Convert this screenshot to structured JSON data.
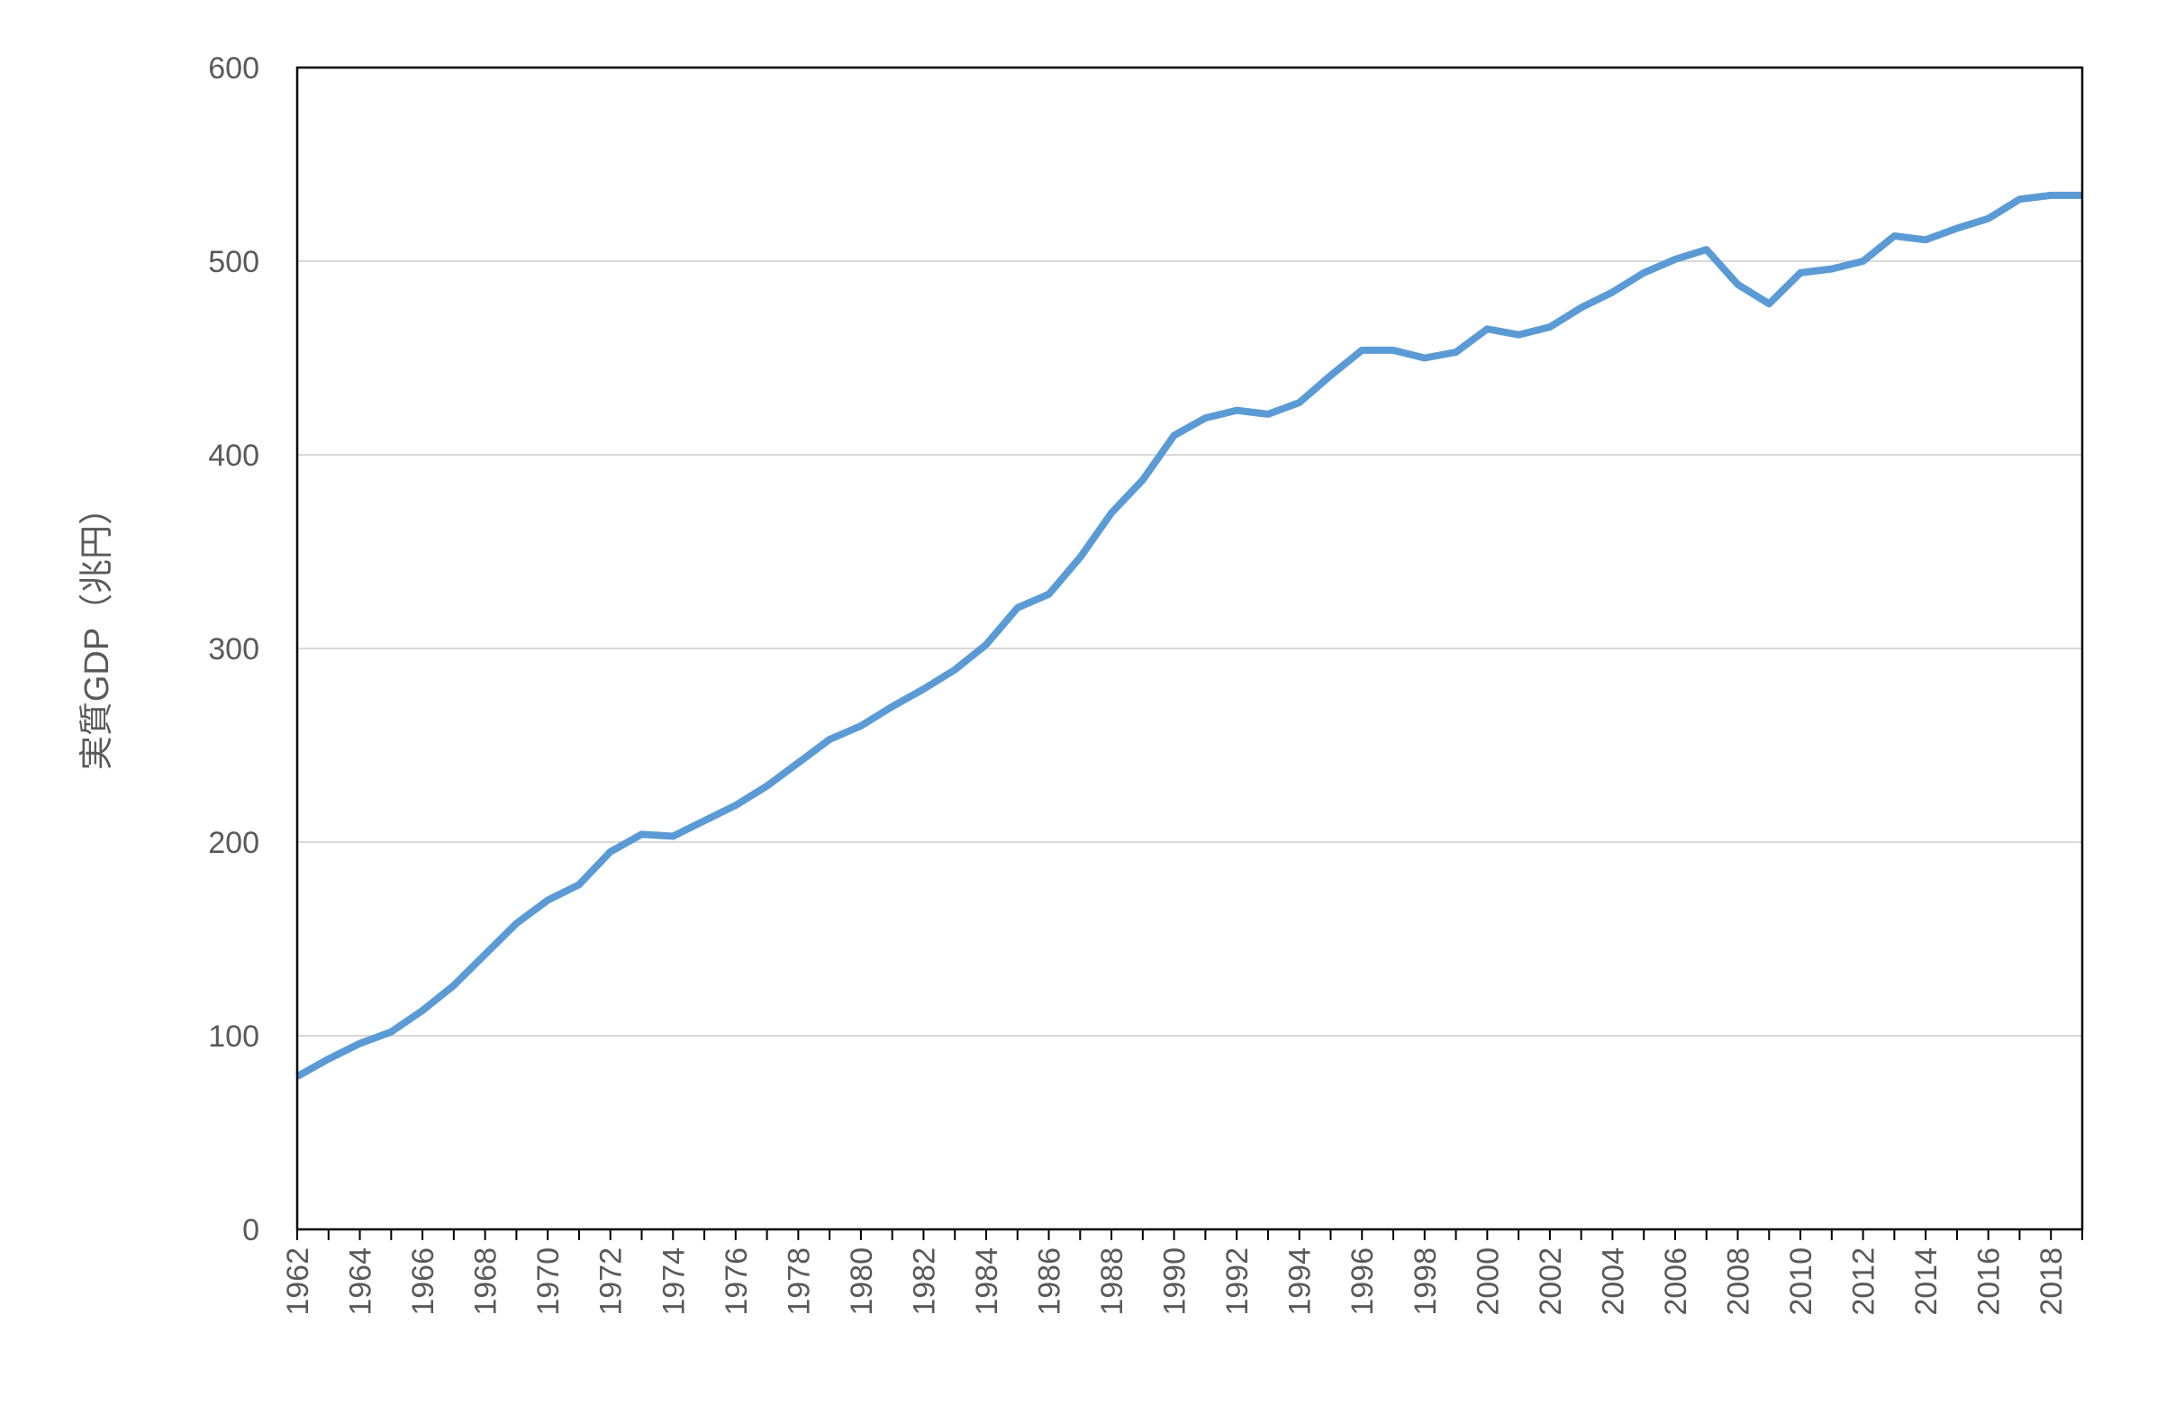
{
  "chart_data": {
    "type": "line",
    "title": "",
    "xlabel": "",
    "ylabel": "実質GDP（兆円）",
    "ylim": [
      0,
      600
    ],
    "yticks": [
      0,
      100,
      200,
      300,
      400,
      500,
      600
    ],
    "x_tick_labels": [
      "1962",
      "1964",
      "1966",
      "1968",
      "1970",
      "1972",
      "1974",
      "1976",
      "1978",
      "1980",
      "1982",
      "1984",
      "1986",
      "1988",
      "1990",
      "1992",
      "1994",
      "1996",
      "1998",
      "2000",
      "2002",
      "2004",
      "2006",
      "2008",
      "2010",
      "2012",
      "2014",
      "2016",
      "2018"
    ],
    "grid": true,
    "legend": "none",
    "line_color": "#5B9BD5",
    "x": [
      1962,
      1963,
      1964,
      1965,
      1966,
      1967,
      1968,
      1969,
      1970,
      1971,
      1972,
      1973,
      1974,
      1975,
      1976,
      1977,
      1978,
      1979,
      1980,
      1981,
      1982,
      1983,
      1984,
      1985,
      1986,
      1987,
      1988,
      1989,
      1990,
      1991,
      1992,
      1993,
      1994,
      1995,
      1996,
      1997,
      1998,
      1999,
      2000,
      2001,
      2002,
      2003,
      2004,
      2005,
      2006,
      2007,
      2008,
      2009,
      2010,
      2011,
      2012,
      2013,
      2014,
      2015,
      2016,
      2017,
      2018,
      2019
    ],
    "series": [
      {
        "values": [
          79,
          88,
          96,
          102,
          113,
          126,
          142,
          158,
          170,
          178,
          195,
          204,
          203,
          211,
          219,
          229,
          241,
          253,
          260,
          270,
          279,
          289,
          302,
          321,
          328,
          347,
          370,
          387,
          410,
          419,
          423,
          421,
          427,
          441,
          454,
          454,
          450,
          453,
          465,
          462,
          466,
          476,
          484,
          494,
          501,
          506,
          488,
          478,
          494,
          496,
          500,
          513,
          511,
          517,
          522,
          532,
          534,
          534
        ]
      }
    ]
  }
}
